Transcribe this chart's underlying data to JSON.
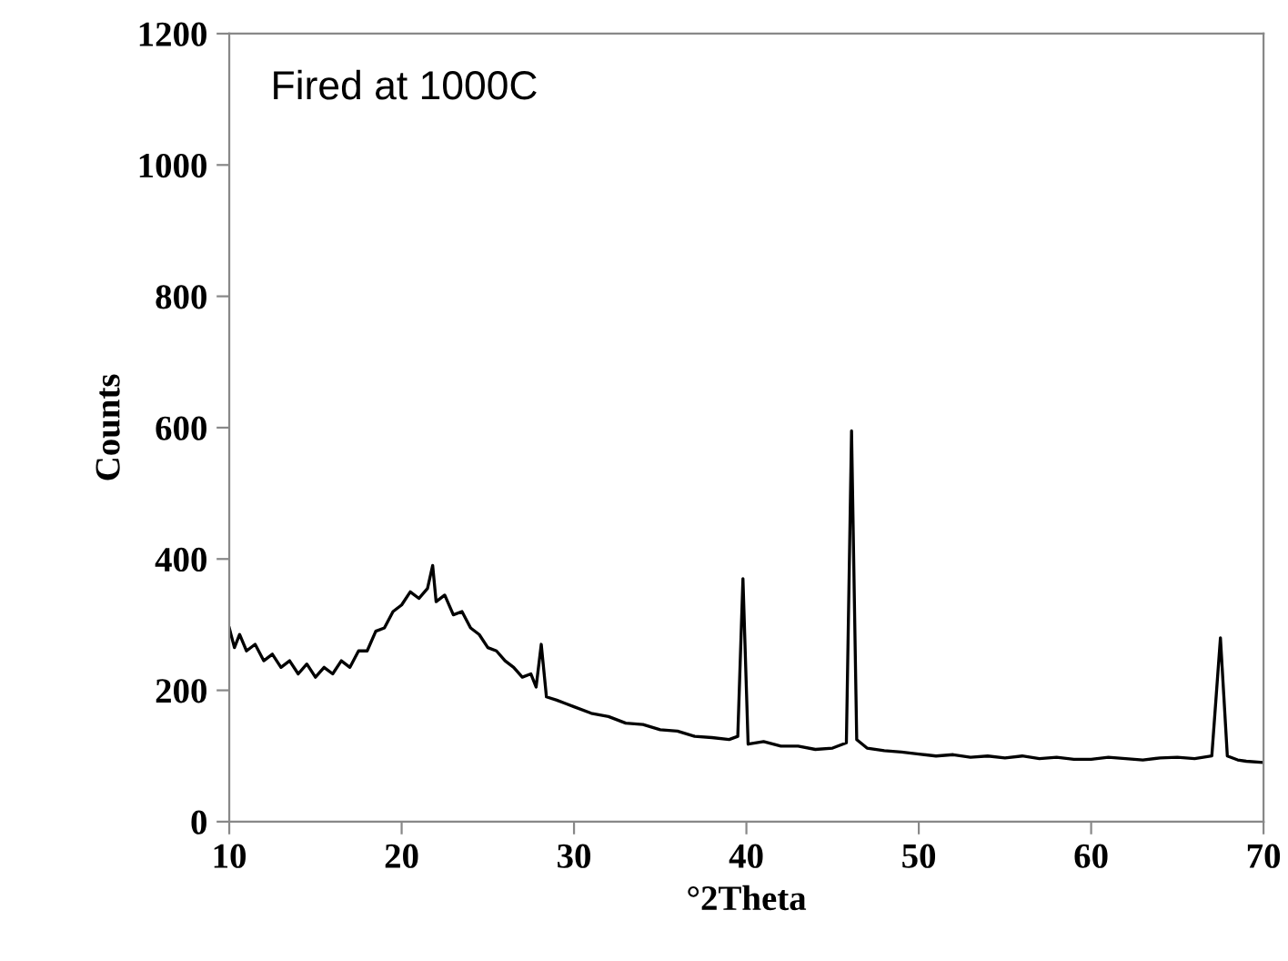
{
  "chart_data": {
    "type": "line",
    "xlabel": "°2Theta",
    "ylabel": "Counts",
    "annotations": [
      "Fired at 1000C"
    ],
    "x": [
      10,
      10.3,
      10.6,
      11,
      11.5,
      12,
      12.5,
      13,
      13.5,
      14,
      14.5,
      15,
      15.5,
      16,
      16.5,
      17,
      17.5,
      18,
      18.5,
      19,
      19.5,
      20,
      20.5,
      21,
      21.5,
      21.8,
      22,
      22.5,
      23,
      23.5,
      24,
      24.5,
      25,
      25.5,
      26,
      26.5,
      27,
      27.5,
      27.8,
      28.1,
      28.4,
      29,
      29.5,
      30,
      31,
      32,
      33,
      34,
      35,
      36,
      37,
      38,
      39,
      39.5,
      39.8,
      40.1,
      41,
      42,
      43,
      44,
      45,
      45.8,
      46.1,
      46.4,
      47,
      48,
      49,
      50,
      51,
      52,
      53,
      54,
      55,
      56,
      57,
      58,
      59,
      60,
      61,
      62,
      63,
      64,
      65,
      66,
      67,
      67.5,
      67.9,
      68.5,
      69,
      70
    ],
    "values": [
      295,
      265,
      285,
      260,
      270,
      245,
      255,
      235,
      245,
      225,
      240,
      220,
      235,
      225,
      245,
      235,
      260,
      260,
      290,
      295,
      320,
      330,
      350,
      340,
      355,
      390,
      335,
      345,
      315,
      320,
      295,
      285,
      265,
      260,
      245,
      235,
      220,
      225,
      205,
      270,
      190,
      185,
      180,
      175,
      165,
      160,
      150,
      148,
      140,
      138,
      130,
      128,
      125,
      130,
      370,
      118,
      122,
      115,
      115,
      110,
      112,
      120,
      595,
      125,
      112,
      108,
      106,
      103,
      100,
      102,
      98,
      100,
      97,
      100,
      96,
      98,
      95,
      95,
      98,
      96,
      94,
      97,
      98,
      96,
      100,
      280,
      100,
      94,
      92,
      90
    ],
    "color": "#000000",
    "marker": "none",
    "line_style": "solid",
    "xlim": [
      10,
      70
    ],
    "ylim": [
      0,
      1200
    ],
    "xticks": [
      10,
      20,
      30,
      40,
      50,
      60,
      70
    ],
    "yticks": [
      0,
      200,
      400,
      600,
      800,
      1000,
      1200
    ],
    "grid": false,
    "legend": false
  }
}
